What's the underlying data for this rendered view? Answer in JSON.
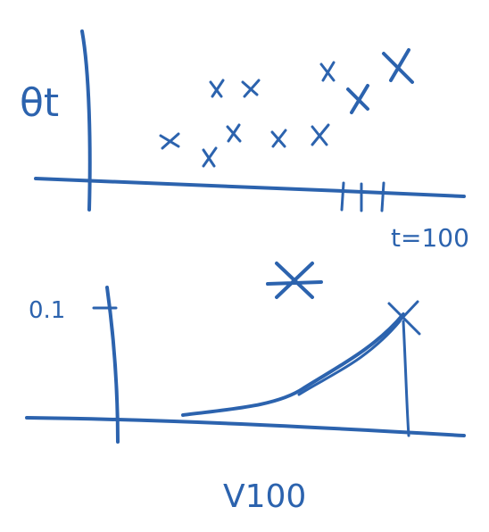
{
  "top_plot": {
    "y_label": "θt",
    "x_label": "t=100"
  },
  "bottom_plot": {
    "y_tick": "0.1",
    "x_label": "V100"
  }
}
